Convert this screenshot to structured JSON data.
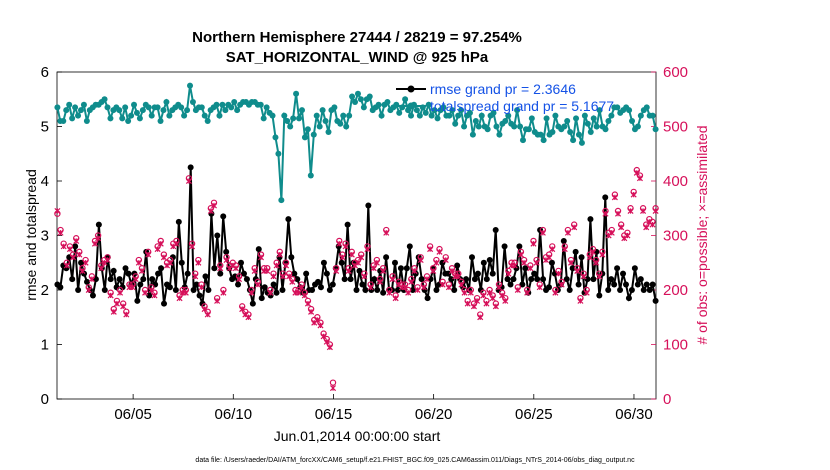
{
  "colors": {
    "rmse": "#000000",
    "spread": "#0f8c8c",
    "obs": "#d6105a",
    "legend_text": "#1452e6",
    "axis": "#000000"
  },
  "chart_data": {
    "type": "line",
    "title": "Northern Hemisphere 27444 / 28219 = 97.254%",
    "subtitle": "SAT_HORIZONTAL_WIND @ 925 hPa",
    "xlabel": "Jun.01,2014 00:00:00 start",
    "ylabel": "rmse and totalspread",
    "ylabel_right": "# of obs: o=possible; ×=assimilated",
    "footnote": "data file: /Users/raeder/DAI/ATM_forcXX/CAM6_setup/f.e21.FHIST_BGC.f09_025.CAM6assim.011/Diags_NTrS_2014-06/obs_diag_output.nc",
    "legend_placement": "top-right",
    "xlim": [
      1.2,
      31.1
    ],
    "ylim": [
      0,
      6
    ],
    "ylim_right": [
      0,
      600
    ],
    "x_ticks": [
      "06/05",
      "06/10",
      "06/15",
      "06/20",
      "06/25",
      "06/30"
    ],
    "x_tick_values": [
      5,
      10,
      15,
      20,
      25,
      30
    ],
    "y_ticks": [
      "0",
      "1",
      "2",
      "3",
      "4",
      "5",
      "6"
    ],
    "y_tick_values": [
      0,
      1,
      2,
      3,
      4,
      5,
      6
    ],
    "y_ticks_right": [
      "0",
      "100",
      "200",
      "300",
      "400",
      "500",
      "600"
    ],
    "y_tick_values_right": [
      0,
      100,
      200,
      300,
      400,
      500,
      600
    ],
    "series": [
      {
        "name": "rmse grand pr = 2.3646",
        "axis": "left",
        "values": [
          2.1,
          2.05,
          2.45,
          2.4,
          2.6,
          2.2,
          2.8,
          2.0,
          2.5,
          2.3,
          2.15,
          2.0,
          1.9,
          2.2,
          3.2,
          2.4,
          2.0,
          2.6,
          2.2,
          2.35,
          2.05,
          2.2,
          2.05,
          2.4,
          2.3,
          2.1,
          2.3,
          1.8,
          2.1,
          2.2,
          2.7,
          1.9,
          2.2,
          2.1,
          2.3,
          2.4,
          1.75,
          2.1,
          2.05,
          2.6,
          2.0,
          3.25,
          2.5,
          2.05,
          2.3,
          4.25,
          2.0,
          2.1,
          1.9,
          1.75,
          2.25,
          2.0,
          3.4,
          2.4,
          3.0,
          2.3,
          3.35,
          2.7,
          2.4,
          2.2,
          2.25,
          2.1,
          2.5,
          2.3,
          2.2,
          2.0,
          1.75,
          2.2,
          2.75,
          1.85,
          2.05,
          1.95,
          1.9,
          2.1,
          1.95,
          2.6,
          2.0,
          2.5,
          3.3,
          2.6,
          2.3,
          2.2,
          2.05,
          1.95,
          2.3,
          2.0,
          2.0,
          2.1,
          2.15,
          2.05,
          2.5,
          2.3,
          2.0,
          2.1,
          2.4,
          2.8,
          2.5,
          2.2,
          3.2,
          2.2,
          2.5,
          2.0,
          2.35,
          2.1,
          2.0,
          3.55,
          2.0,
          2.2,
          2.0,
          2.35,
          1.95,
          2.6,
          2.0,
          2.0,
          2.5,
          2.0,
          2.4,
          2.0,
          2.4,
          2.8,
          2.0,
          2.3,
          2.6,
          2.2,
          2.0,
          1.85,
          2.2,
          2.4,
          2.0,
          2.1,
          2.5,
          2.3,
          2.3,
          2.2,
          2.0,
          2.45,
          2.2,
          2.05,
          2.2,
          2.0,
          2.6,
          2.2,
          2.3,
          2.0,
          2.5,
          2.2,
          2.55,
          2.3,
          3.1,
          2.0,
          2.05,
          2.8,
          2.2,
          2.1,
          2.2,
          2.4,
          2.8,
          2.1,
          2.4,
          1.95,
          2.2,
          2.3,
          2.2,
          3.1,
          2.2,
          2.0,
          2.05,
          2.5,
          2.3,
          2.0,
          2.1,
          2.9,
          2.2,
          2.0,
          2.4,
          2.7,
          2.1,
          2.6,
          1.95,
          2.2,
          3.3,
          2.2,
          2.7,
          1.9,
          2.3,
          3.7,
          2.0,
          2.2,
          2.1,
          2.4,
          2.0,
          2.3,
          2.1,
          1.85,
          2.0,
          2.4,
          2.1,
          2.2,
          2.0,
          2.1,
          2.0,
          2.1,
          1.8
        ]
      },
      {
        "name": "totalspread grand pr = 5.1677",
        "axis": "left",
        "values": [
          5.35,
          5.1,
          5.1,
          5.3,
          5.4,
          5.15,
          5.35,
          5.2,
          5.3,
          5.4,
          5.1,
          5.3,
          5.35,
          5.4,
          5.4,
          5.45,
          5.5,
          5.35,
          5.15,
          5.3,
          5.35,
          5.3,
          5.15,
          5.35,
          5.1,
          5.2,
          5.4,
          5.25,
          5.15,
          5.3,
          5.4,
          5.35,
          5.2,
          5.35,
          5.35,
          5.1,
          5.3,
          5.45,
          5.2,
          5.3,
          5.35,
          5.4,
          5.35,
          5.2,
          5.3,
          5.75,
          5.45,
          5.3,
          5.35,
          5.35,
          5.2,
          5.1,
          5.3,
          5.35,
          5.4,
          5.2,
          5.4,
          5.3,
          5.4,
          5.35,
          5.45,
          5.3,
          5.4,
          5.45,
          5.45,
          5.4,
          5.45,
          5.45,
          5.4,
          5.4,
          5.15,
          5.35,
          5.25,
          5.2,
          4.8,
          4.5,
          3.65,
          5.2,
          5.1,
          5.0,
          5.15,
          5.6,
          5.15,
          5.3,
          4.8,
          4.95,
          4.1,
          4.85,
          5.2,
          5.0,
          5.3,
          5.1,
          4.9,
          5.3,
          5.35,
          5.1,
          5.05,
          5.2,
          5.0,
          5.2,
          5.55,
          5.45,
          5.6,
          5.5,
          5.35,
          5.5,
          5.55,
          5.3,
          5.35,
          5.4,
          5.2,
          5.4,
          5.45,
          5.3,
          5.35,
          5.4,
          5.25,
          5.35,
          5.5,
          5.3,
          5.2,
          5.4,
          5.3,
          5.2,
          5.35,
          5.25,
          5.4,
          5.2,
          5.3,
          5.15,
          5.3,
          5.35,
          5.2,
          5.2,
          5.3,
          5.05,
          5.2,
          5.3,
          5.0,
          5.2,
          5.25,
          4.85,
          5.1,
          5.0,
          5.2,
          5.0,
          4.95,
          5.2,
          5.25,
          5.0,
          4.85,
          5.05,
          5.1,
          5.2,
          5.05,
          5.0,
          5.3,
          5.0,
          4.75,
          4.95,
          4.95,
          5.15,
          4.9,
          4.85,
          4.85,
          4.75,
          5.15,
          4.85,
          4.9,
          5.2,
          5.0,
          4.95,
          5.0,
          5.1,
          4.9,
          4.75,
          5.15,
          4.85,
          4.7,
          5.2,
          5.05,
          4.9,
          5.15,
          5.0,
          5.3,
          5.0,
          4.95,
          5.1,
          5.2,
          5.35,
          5.35,
          5.25,
          5.3,
          5.35,
          5.3,
          5.1,
          4.95,
          5.0,
          5.2,
          5.3,
          5.35,
          5.2,
          5.2,
          4.95
        ]
      },
      {
        "name": "obs_possible",
        "axis": "right",
        "values": [
          340,
          310,
          285,
          250,
          280,
          265,
          295,
          270,
          240,
          255,
          205,
          225,
          290,
          300,
          245,
          255,
          260,
          195,
          165,
          180,
          200,
          175,
          160,
          210,
          210,
          225,
          255,
          240,
          200,
          270,
          205,
          195,
          280,
          290,
          265,
          250,
          255,
          285,
          290,
          190,
          200,
          200,
          405,
          285,
          230,
          255,
          210,
          170,
          160,
          350,
          360,
          185,
          245,
          200,
          260,
          245,
          250,
          245,
          225,
          170,
          160,
          155,
          200,
          240,
          215,
          265,
          240,
          240,
          200,
          230,
          250,
          270,
          230,
          250,
          230,
          220,
          200,
          200,
          210,
          195,
          180,
          165,
          145,
          150,
          140,
          120,
          110,
          100,
          30,
          240,
          290,
          265,
          285,
          240,
          270,
          250,
          255,
          265,
          230,
          280,
          210,
          245,
          255,
          220,
          240,
          310,
          200,
          225,
          190,
          215,
          210,
          210,
          200,
          220,
          240,
          205,
          260,
          210,
          225,
          280,
          240,
          255,
          275,
          215,
          260,
          210,
          240,
          230,
          230,
          215,
          200,
          180,
          200,
          175,
          185,
          155,
          195,
          180,
          200,
          190,
          175,
          210,
          195,
          185,
          235,
          250,
          250,
          205,
          270,
          255,
          200,
          245,
          290,
          255,
          210,
          310,
          260,
          265,
          280,
          200,
          235,
          215,
          280,
          310,
          255,
          320,
          240,
          185,
          230,
          200,
          265,
          275,
          255,
          230,
          270,
          345,
          305,
          310,
          375,
          345,
          320,
          300,
          305,
          350,
          380,
          420,
          410,
          350,
          320,
          330,
          325,
          350
        ]
      },
      {
        "name": "obs_assimilated",
        "axis": "right",
        "values": [
          345,
          305,
          280,
          245,
          275,
          260,
          290,
          265,
          235,
          250,
          200,
          220,
          285,
          295,
          240,
          250,
          255,
          190,
          160,
          175,
          195,
          170,
          155,
          205,
          205,
          220,
          250,
          235,
          195,
          265,
          200,
          190,
          275,
          285,
          260,
          245,
          250,
          280,
          285,
          185,
          195,
          195,
          400,
          280,
          225,
          250,
          205,
          165,
          155,
          345,
          355,
          180,
          240,
          195,
          255,
          240,
          245,
          240,
          220,
          165,
          155,
          150,
          195,
          235,
          210,
          260,
          235,
          235,
          195,
          225,
          245,
          265,
          225,
          245,
          225,
          215,
          195,
          195,
          205,
          190,
          175,
          160,
          140,
          145,
          135,
          115,
          105,
          95,
          20,
          235,
          285,
          260,
          280,
          235,
          265,
          245,
          250,
          260,
          225,
          275,
          205,
          240,
          250,
          215,
          235,
          305,
          195,
          220,
          185,
          210,
          205,
          205,
          195,
          215,
          235,
          200,
          255,
          205,
          220,
          275,
          235,
          250,
          270,
          210,
          255,
          205,
          235,
          225,
          225,
          210,
          195,
          175,
          195,
          170,
          180,
          150,
          190,
          175,
          195,
          185,
          170,
          205,
          190,
          180,
          230,
          245,
          245,
          200,
          265,
          250,
          195,
          240,
          285,
          250,
          205,
          305,
          255,
          260,
          275,
          195,
          230,
          210,
          275,
          305,
          250,
          315,
          235,
          180,
          225,
          195,
          260,
          270,
          250,
          225,
          265,
          340,
          300,
          305,
          370,
          340,
          315,
          295,
          300,
          345,
          375,
          415,
          405,
          345,
          315,
          325,
          320,
          345
        ]
      }
    ]
  }
}
